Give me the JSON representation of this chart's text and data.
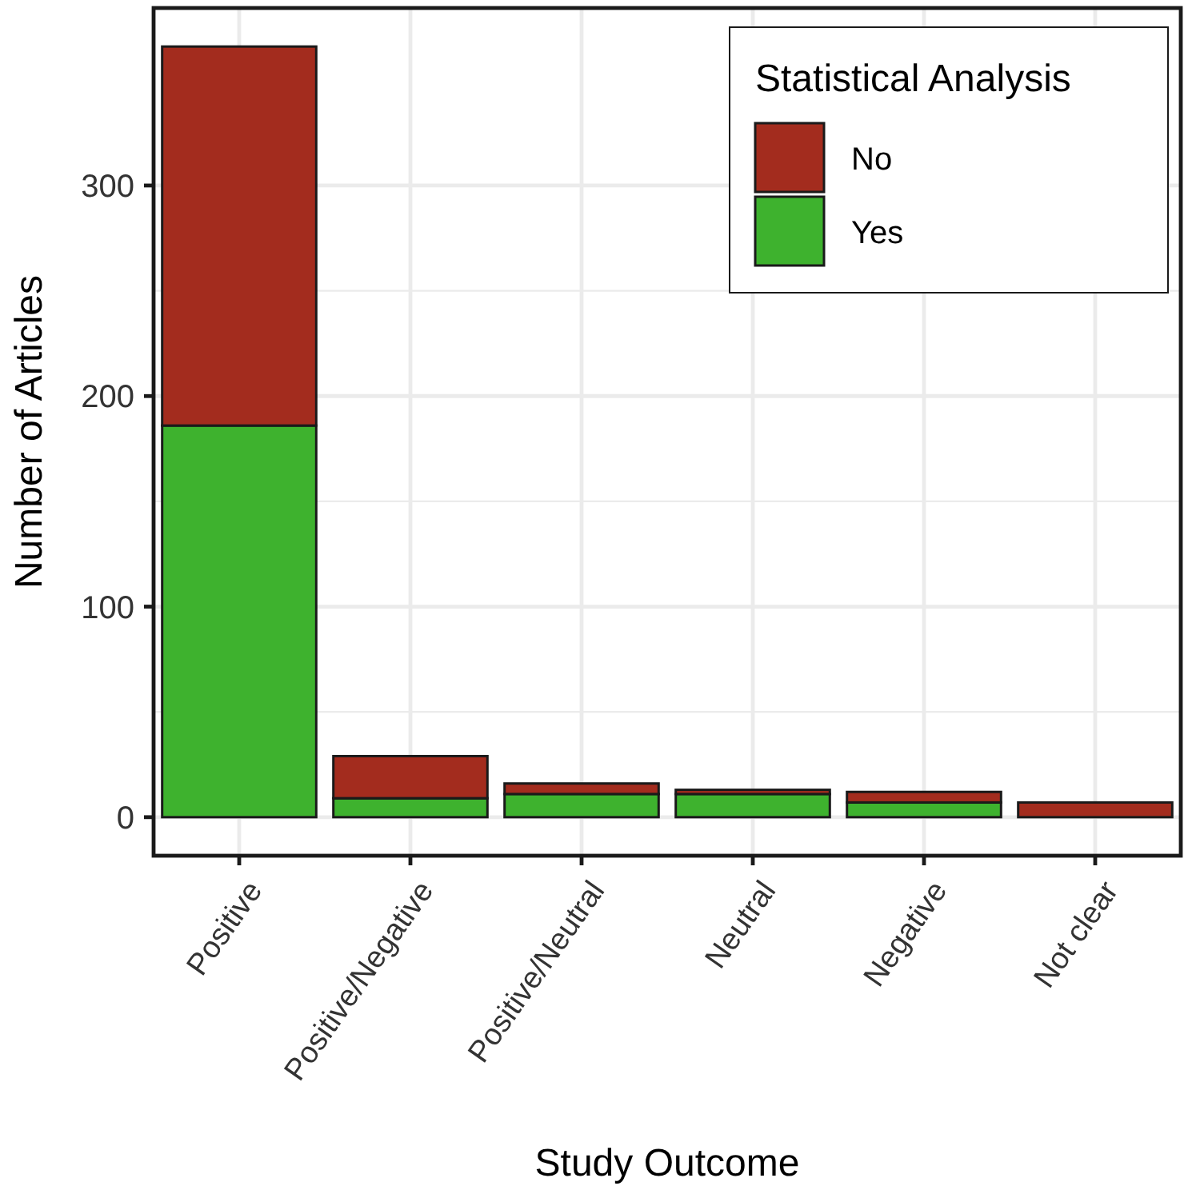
{
  "chart_data": {
    "type": "bar",
    "stacked": true,
    "xlabel": "Study Outcome",
    "ylabel": "Number of Articles",
    "legend_title": "Statistical Analysis",
    "legend": "top right",
    "grid": true,
    "categories": [
      "Positive",
      "Positive/Negative",
      "Positive/Neutral",
      "Neutral",
      "Negative",
      "Not clear"
    ],
    "series": [
      {
        "name": "Yes",
        "color": "#3eb22e",
        "values": [
          186,
          9,
          11,
          11,
          7,
          null
        ]
      },
      {
        "name": "No",
        "color": "#a32c1e",
        "values": [
          180,
          20,
          5,
          2,
          5,
          7
        ]
      }
    ],
    "ylim": [
      -18.3,
      384.3
    ],
    "yticks": [
      0,
      100,
      200,
      300
    ]
  }
}
